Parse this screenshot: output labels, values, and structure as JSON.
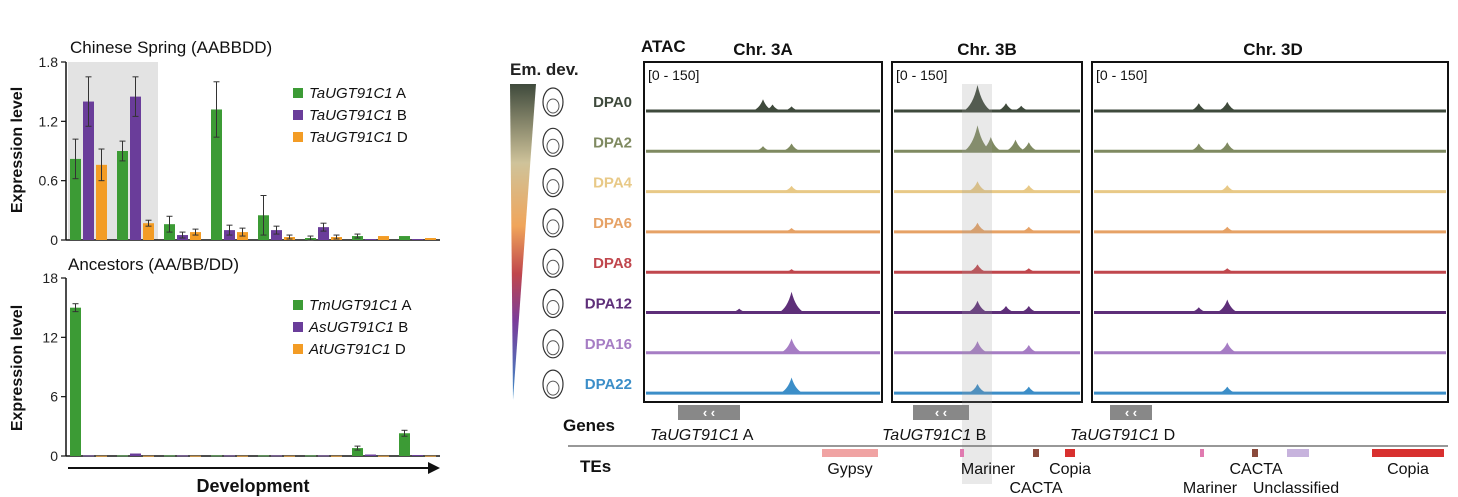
{
  "chart_data": [
    {
      "type": "bar",
      "title": "Chinese Spring (AABBDD)",
      "ylabel": "Expression level",
      "xlabel": "",
      "ylim": [
        0,
        1.8
      ],
      "yticks": [
        "0",
        "0.6",
        "1.2",
        "1.8"
      ],
      "highlight": "first 2 groups shaded",
      "series": [
        {
          "name": "TaUGT91C1",
          "suffix": " A",
          "color": "#3c9b35",
          "values": [
            0.82,
            0.9,
            0.16,
            1.32,
            0.25,
            0.02,
            0.04,
            0.04
          ],
          "errors": [
            0.2,
            0.1,
            0.08,
            0.28,
            0.2,
            0.02,
            0.02,
            0.01
          ]
        },
        {
          "name": "TaUGT91C1",
          "suffix": " B",
          "color": "#6a3d9a",
          "values": [
            1.4,
            1.45,
            0.05,
            0.1,
            0.1,
            0.13,
            0.01,
            0.01
          ],
          "errors": [
            0.25,
            0.2,
            0.03,
            0.05,
            0.04,
            0.04,
            0.01,
            0.01
          ]
        },
        {
          "name": "TaUGT91C1",
          "suffix": " D",
          "color": "#f39c25",
          "values": [
            0.76,
            0.17,
            0.08,
            0.08,
            0.03,
            0.03,
            0.04,
            0.02
          ],
          "errors": [
            0.16,
            0.03,
            0.03,
            0.04,
            0.02,
            0.02,
            0.01,
            0.01
          ]
        }
      ]
    },
    {
      "type": "bar",
      "title": "Ancestors (AA/BB/DD)",
      "ylabel": "Expression level",
      "xlabel": "Development",
      "ylim": [
        0,
        18
      ],
      "yticks": [
        "0",
        "6",
        "12",
        "18"
      ],
      "series": [
        {
          "name": "TmUGT91C1",
          "suffix": " A",
          "color": "#3c9b35",
          "values": [
            15.0,
            0.05,
            0.05,
            0.05,
            0.05,
            0.05,
            0.8,
            2.3
          ],
          "errors": [
            0.4,
            0.05,
            0.05,
            0.05,
            0.1,
            0.05,
            0.2,
            0.3
          ]
        },
        {
          "name": "AsUGT91C1",
          "suffix": " B",
          "color": "#6a3d9a",
          "values": [
            0.05,
            0.25,
            0.05,
            0.05,
            0.05,
            0.05,
            0.15,
            0.1
          ],
          "errors": [
            0.05,
            0.1,
            0.05,
            0.05,
            0.05,
            0.05,
            0.05,
            0.05
          ]
        },
        {
          "name": "AtUGT91C1",
          "suffix": " D",
          "color": "#f39c25",
          "values": [
            0.02,
            0.02,
            0.02,
            0.02,
            0.02,
            0.02,
            0.02,
            0.02
          ],
          "errors": [
            0.02,
            0.02,
            0.02,
            0.02,
            0.02,
            0.02,
            0.02,
            0.02
          ]
        }
      ]
    }
  ],
  "atac": {
    "title": "ATAC",
    "emb_label": "Em. dev.",
    "range_label": "[0 - 150]",
    "chromosomes": [
      "Chr. 3A",
      "Chr. 3B",
      "Chr. 3D"
    ],
    "tracks": [
      {
        "label": "DPA0",
        "color": "#3f4a3c",
        "peaks": [
          [
            [
              0.5,
              0.45
            ],
            [
              0.54,
              0.25
            ],
            [
              0.62,
              0.18
            ]
          ],
          [
            [
              0.45,
              1.0
            ],
            [
              0.6,
              0.3
            ],
            [
              0.68,
              0.2
            ]
          ],
          [
            [
              0.3,
              0.3
            ],
            [
              0.38,
              0.35
            ]
          ]
        ]
      },
      {
        "label": "DPA2",
        "color": "#7f8a61",
        "peaks": [
          [
            [
              0.5,
              0.2
            ],
            [
              0.62,
              0.3
            ]
          ],
          [
            [
              0.45,
              1.0
            ],
            [
              0.52,
              0.55
            ],
            [
              0.65,
              0.45
            ],
            [
              0.72,
              0.35
            ]
          ],
          [
            [
              0.3,
              0.3
            ],
            [
              0.38,
              0.35
            ]
          ]
        ]
      },
      {
        "label": "DPA4",
        "color": "#e8c987",
        "peaks": [
          [
            [
              0.62,
              0.22
            ]
          ],
          [
            [
              0.45,
              0.4
            ],
            [
              0.72,
              0.25
            ]
          ],
          [
            [
              0.38,
              0.25
            ]
          ]
        ]
      },
      {
        "label": "DPA6",
        "color": "#e6a266",
        "peaks": [
          [
            [
              0.62,
              0.15
            ]
          ],
          [
            [
              0.45,
              0.35
            ],
            [
              0.72,
              0.2
            ]
          ],
          [
            [
              0.38,
              0.2
            ]
          ]
        ]
      },
      {
        "label": "DPA8",
        "color": "#c0474d",
        "peaks": [
          [
            [
              0.62,
              0.12
            ]
          ],
          [
            [
              0.45,
              0.3
            ],
            [
              0.72,
              0.15
            ]
          ],
          [
            [
              0.38,
              0.15
            ]
          ]
        ]
      },
      {
        "label": "DPA12",
        "color": "#5e2f79",
        "peaks": [
          [
            [
              0.62,
              0.8
            ],
            [
              0.4,
              0.15
            ]
          ],
          [
            [
              0.45,
              0.45
            ],
            [
              0.6,
              0.25
            ],
            [
              0.72,
              0.25
            ]
          ],
          [
            [
              0.38,
              0.5
            ],
            [
              0.3,
              0.2
            ]
          ]
        ]
      },
      {
        "label": "DPA16",
        "color": "#a67dc4",
        "peaks": [
          [
            [
              0.62,
              0.55
            ]
          ],
          [
            [
              0.45,
              0.45
            ],
            [
              0.72,
              0.3
            ]
          ],
          [
            [
              0.38,
              0.4
            ]
          ]
        ]
      },
      {
        "label": "DPA22",
        "color": "#3c8ec8",
        "peaks": [
          [
            [
              0.62,
              0.6
            ]
          ],
          [
            [
              0.45,
              0.35
            ],
            [
              0.72,
              0.25
            ]
          ],
          [
            [
              0.38,
              0.25
            ]
          ]
        ]
      }
    ],
    "genes_label": "Genes",
    "genes": [
      {
        "name": "TaUGT91C1",
        "suffix": " A"
      },
      {
        "name": "TaUGT91C1",
        "suffix": " B"
      },
      {
        "name": "TaUGT91C1",
        "suffix": " D"
      }
    ],
    "tes_label": "TEs",
    "tes": [
      {
        "name": "Gypsy",
        "color": "#f0a3a3"
      },
      {
        "name": "Mariner",
        "color": "#e07ab0"
      },
      {
        "name": "CACTA",
        "color": "#8b4a3c"
      },
      {
        "name": "Copia",
        "color": "#d8302f"
      },
      {
        "name": "Mariner",
        "color": "#e07ab0"
      },
      {
        "name": "CACTA",
        "color": "#8b4a3c"
      },
      {
        "name": "Unclassified",
        "color": "#c7b3dd"
      },
      {
        "name": "Copia",
        "color": "#d8302f"
      }
    ]
  }
}
